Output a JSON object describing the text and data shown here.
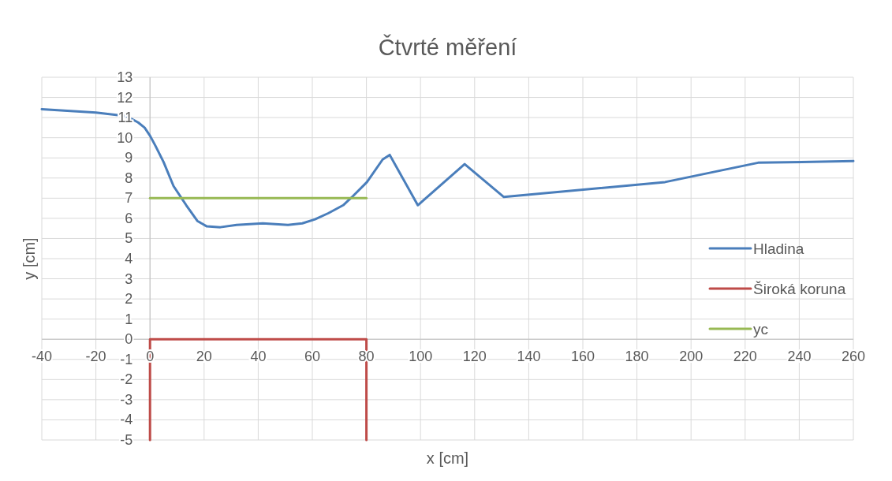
{
  "chart_data": {
    "type": "line",
    "title": "Čtvrté měření",
    "xlabel": "x [cm]",
    "ylabel": "y [cm]",
    "xlim": [
      -40,
      260
    ],
    "xticks": [
      -40,
      -20,
      0,
      20,
      40,
      60,
      80,
      100,
      120,
      140,
      160,
      180,
      200,
      220,
      240,
      260
    ],
    "ylim": [
      -5,
      13
    ],
    "yticks": [
      -5,
      -4,
      -3,
      -2,
      -1,
      0,
      1,
      2,
      3,
      4,
      5,
      6,
      7,
      8,
      9,
      10,
      11,
      12,
      13
    ],
    "grid": true,
    "legend": "right",
    "marker": "none",
    "line_style": "solid",
    "series": [
      {
        "name": "Hladina",
        "color": "#4a7ebb",
        "x": [
          -40,
          -20,
          -8.7,
          -4.4,
          -2,
          0,
          2,
          5,
          8.7,
          13.4,
          17.5,
          21,
          26,
          32,
          41.7,
          51,
          56.3,
          61,
          66,
          71.4,
          75,
          80.2,
          86,
          88.6,
          99,
          116.3,
          130.8,
          190.4,
          224.8,
          260
        ],
        "values": [
          11.42,
          11.25,
          11.07,
          10.76,
          10.5,
          10.1,
          9.6,
          8.8,
          7.6,
          6.65,
          5.87,
          5.6,
          5.56,
          5.67,
          5.75,
          5.67,
          5.75,
          5.95,
          6.26,
          6.65,
          7.1,
          7.8,
          8.92,
          9.15,
          6.65,
          8.69,
          7.06,
          7.8,
          8.76,
          8.84
        ]
      },
      {
        "name": "Široká koruna",
        "color": "#be4b48",
        "x": [
          0,
          0,
          80,
          80
        ],
        "values": [
          -5,
          0,
          0,
          -5
        ]
      },
      {
        "name": "yc",
        "color": "#98b954",
        "x": [
          0,
          80
        ],
        "values": [
          7,
          7
        ]
      }
    ]
  }
}
